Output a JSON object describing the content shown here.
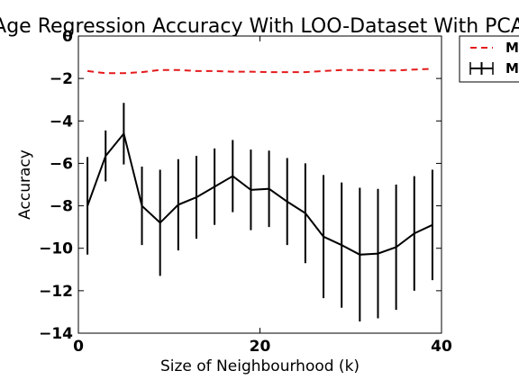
{
  "chart_data": {
    "type": "line",
    "title": "Age Regression Accuracy With LOO-Dataset With PCA",
    "xlabel": "Size of Neighbourhood (k)",
    "ylabel": "Accuracy",
    "xlim": [
      0,
      40
    ],
    "ylim": [
      -14,
      0
    ],
    "xticks": [
      0,
      20,
      40
    ],
    "yticks": [
      0,
      -2,
      -4,
      -6,
      -8,
      -10,
      -12,
      -14
    ],
    "grid": false,
    "legend_position": "outside-top-right",
    "x": [
      1,
      3,
      5,
      7,
      9,
      11,
      13,
      15,
      17,
      19,
      21,
      23,
      25,
      27,
      29,
      31,
      33,
      35,
      37,
      39
    ],
    "series": [
      {
        "name": "M",
        "style": "dashed",
        "color": "#e41a1c",
        "values": [
          -1.65,
          -1.75,
          -1.75,
          -1.7,
          -1.6,
          -1.6,
          -1.65,
          -1.65,
          -1.68,
          -1.68,
          -1.7,
          -1.7,
          -1.7,
          -1.65,
          -1.6,
          -1.6,
          -1.62,
          -1.62,
          -1.58,
          -1.55
        ]
      },
      {
        "name": "M",
        "style": "solid-errorbar",
        "color": "#000000",
        "values": [
          -8.0,
          -5.65,
          -4.6,
          -8.0,
          -8.8,
          -7.95,
          -7.6,
          -7.1,
          -6.6,
          -7.25,
          -7.2,
          -7.8,
          -8.35,
          -9.45,
          -9.85,
          -10.3,
          -10.25,
          -9.95,
          -9.3,
          -8.9
        ],
        "errors": [
          2.3,
          1.2,
          1.45,
          1.85,
          2.5,
          2.15,
          1.95,
          1.8,
          1.7,
          1.9,
          1.8,
          2.05,
          2.35,
          2.9,
          2.95,
          3.15,
          3.05,
          2.95,
          2.7,
          2.6
        ]
      }
    ]
  }
}
